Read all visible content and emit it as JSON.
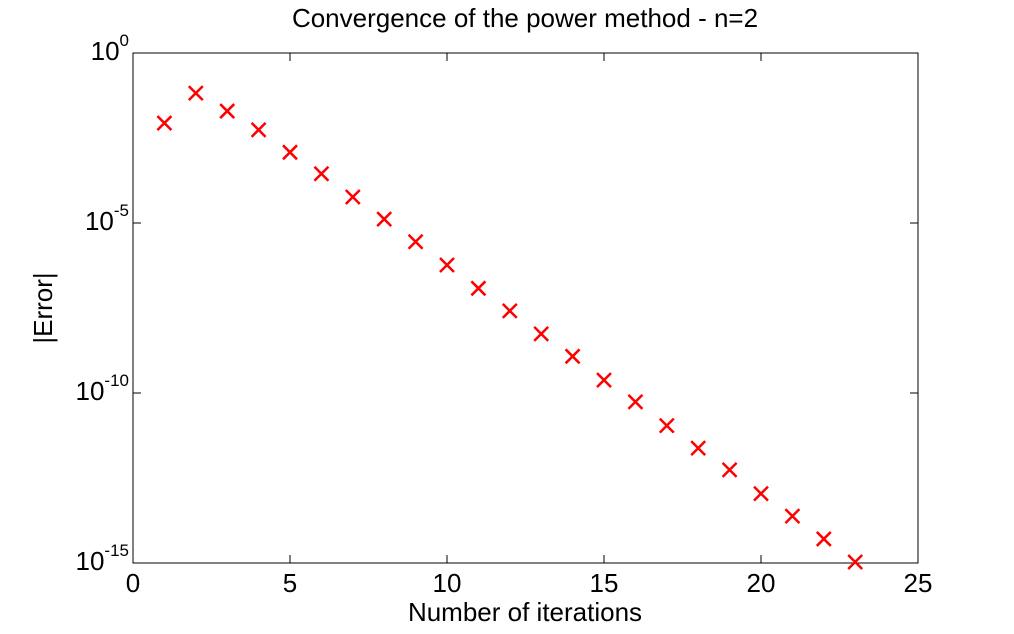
{
  "chart_data": {
    "type": "scatter",
    "title": "Convergence of the power method - n=2",
    "xlabel": "Number of iterations",
    "ylabel": "|Error|",
    "x": [
      1,
      2,
      3,
      4,
      5,
      6,
      7,
      8,
      9,
      10,
      11,
      12,
      13,
      14,
      15,
      16,
      17,
      18,
      19,
      20,
      21,
      22,
      23
    ],
    "series": [
      {
        "color": "#ff0000",
        "values": [
          0.0087,
          0.066,
          0.0196,
          0.0055,
          0.0012,
          0.00028,
          5.8e-05,
          1.3e-05,
          2.8e-06,
          5.8e-07,
          1.2e-07,
          2.6e-08,
          5.5e-09,
          1.2e-09,
          2.4e-10,
          5.5e-11,
          1.1e-11,
          2.4e-12,
          5.5e-13,
          1.1e-13,
          2.4e-14,
          5.1e-15,
          1.07e-15
        ]
      }
    ],
    "xlim": [
      0,
      25
    ],
    "xticks": [
      0,
      5,
      10,
      15,
      20,
      25
    ],
    "ylim": [
      1e-15,
      1
    ],
    "yscale": "log",
    "yticks": [
      {
        "value": 1,
        "label": "10^0"
      },
      {
        "value": 1e-05,
        "label": "10^-5"
      },
      {
        "value": 1e-10,
        "label": "10^-10"
      },
      {
        "value": 1e-15,
        "label": "10^-15"
      }
    ],
    "grid": false
  }
}
